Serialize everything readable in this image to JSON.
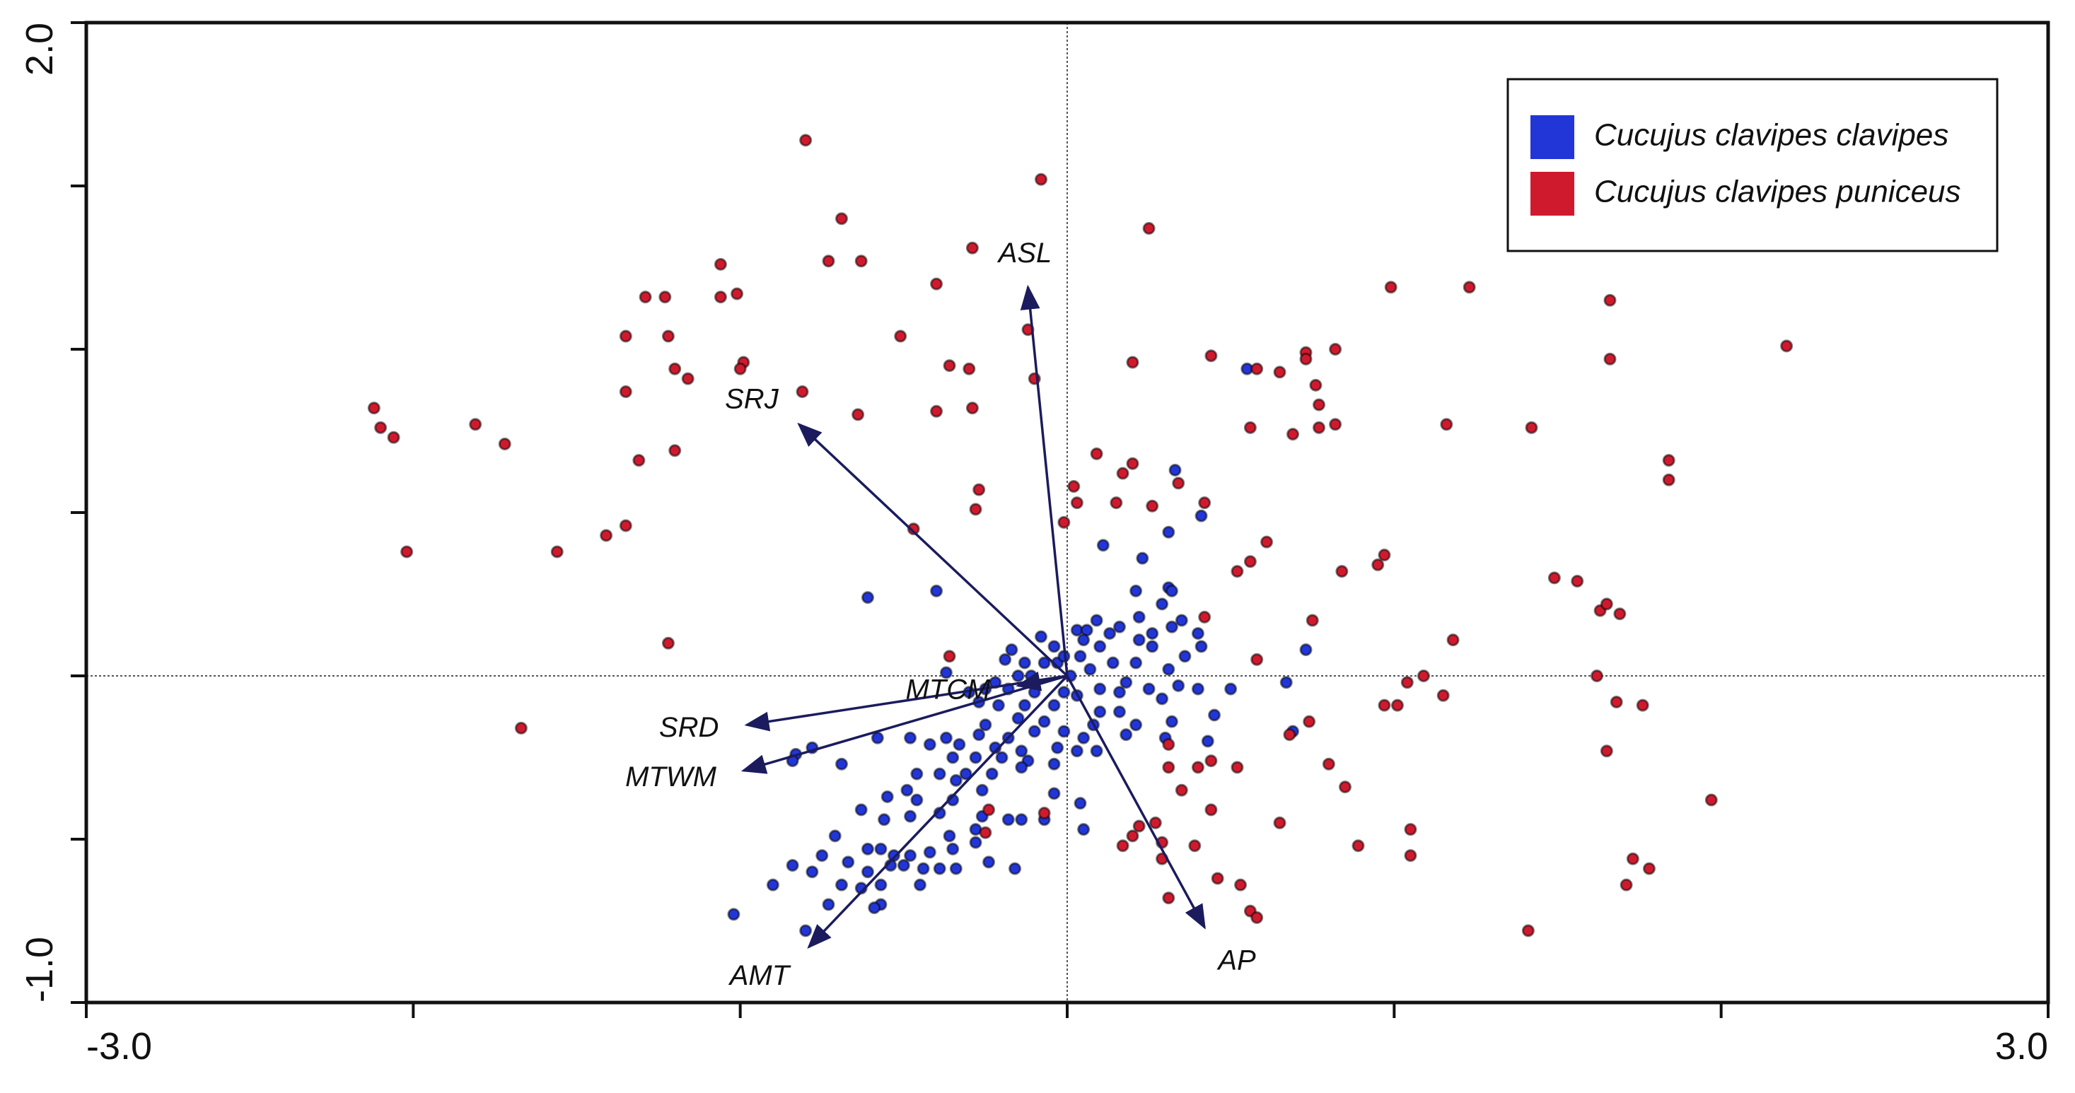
{
  "chart_data": {
    "type": "scatter",
    "xlim": [
      -3,
      3
    ],
    "ylim": [
      -1,
      2
    ],
    "xticks": [
      {
        "value": -3,
        "label": "-3.0"
      },
      {
        "value": -2
      },
      {
        "value": -1
      },
      {
        "value": 0
      },
      {
        "value": 1
      },
      {
        "value": 2
      },
      {
        "value": 3,
        "label": "3.0"
      }
    ],
    "yticks": [
      {
        "value": -1,
        "label": "-1.0"
      },
      {
        "value": -0.5
      },
      {
        "value": 0
      },
      {
        "value": 0.5
      },
      {
        "value": 1
      },
      {
        "value": 1.5
      },
      {
        "value": 2,
        "label": "2.0"
      }
    ],
    "zero_lines": true,
    "legend": "top-right",
    "series": [
      {
        "name": "Cucujus clavipes clavipes",
        "color": "#2236d8",
        "x": [
          0.55,
          0.33,
          0.41,
          0.31,
          0.11,
          0.23,
          0.31,
          0.21,
          0.32,
          0.29,
          0.22,
          0.35,
          0.09,
          0.16,
          0.32,
          -0.61,
          -0.4,
          0.13,
          0.26,
          0.4,
          0.73,
          -0.08,
          0.03,
          0.06,
          -0.04,
          -0.03,
          0.05,
          0.1,
          0.22,
          0.26,
          0.36,
          0.41,
          -0.17,
          -0.19,
          -0.13,
          -0.07,
          -0.01,
          0.04,
          -0.11,
          -0.15,
          0.01,
          0.07,
          0.14,
          0.21,
          0.31,
          0.18,
          0.34,
          0.5,
          0.67,
          -0.37,
          -0.22,
          -0.25,
          -0.3,
          -0.18,
          -0.1,
          -0.01,
          0.03,
          0.1,
          0.16,
          0.25,
          0.4,
          0.29,
          -0.27,
          -0.21,
          -0.13,
          -0.04,
          0.1,
          0.16,
          0.32,
          0.45,
          -0.25,
          -0.15,
          -0.07,
          0.08,
          0.21,
          0.69,
          -0.37,
          -0.27,
          -0.18,
          -0.1,
          -0.01,
          0.05,
          0.18,
          0.3,
          -0.42,
          -0.33,
          -0.22,
          -0.14,
          -0.03,
          0.03,
          0.09,
          0.43,
          -0.83,
          -0.84,
          -0.78,
          -0.69,
          -0.58,
          -0.48,
          -0.35,
          -0.28,
          -0.2,
          -0.12,
          -0.04,
          -0.46,
          -0.39,
          -0.31,
          -0.23,
          -0.14,
          -0.34,
          -0.26,
          -0.49,
          -0.55,
          -0.46,
          -0.35,
          -0.04,
          0.04,
          -0.26,
          -0.63,
          -0.56,
          -0.48,
          -0.39,
          -0.18,
          -0.14,
          -0.07,
          0.05,
          -0.28,
          -0.71,
          -0.36,
          -0.28,
          -0.61,
          -0.57,
          -0.53,
          -0.48,
          -0.42,
          -0.35,
          -0.75,
          -0.67,
          -0.84,
          -0.78,
          -0.61,
          -0.54,
          -0.5,
          -0.44,
          -0.39,
          -0.34,
          -0.16,
          -0.24,
          -0.69,
          -0.57,
          -0.45,
          -0.9,
          -0.63,
          -0.73,
          -0.57,
          -0.59,
          -1.02,
          -0.8
        ],
        "y": [
          0.94,
          0.63,
          0.49,
          0.44,
          0.4,
          0.36,
          0.27,
          0.26,
          0.26,
          0.22,
          0.18,
          0.17,
          0.17,
          0.15,
          0.15,
          0.24,
          0.26,
          0.13,
          0.13,
          0.13,
          0.08,
          0.12,
          0.14,
          0.14,
          0.09,
          0.04,
          0.11,
          0.09,
          0.11,
          0.09,
          0.06,
          0.09,
          0.08,
          0.05,
          0.04,
          0.04,
          0.06,
          0.06,
          0,
          0,
          0,
          0.02,
          0.04,
          0.04,
          0.02,
          -0.02,
          -0.03,
          -0.04,
          -0.02,
          0.01,
          -0.02,
          -0.04,
          -0.05,
          -0.04,
          -0.05,
          -0.05,
          -0.06,
          -0.04,
          -0.05,
          -0.04,
          -0.04,
          -0.07,
          -0.08,
          -0.09,
          -0.09,
          -0.09,
          -0.11,
          -0.11,
          -0.14,
          -0.12,
          -0.15,
          -0.13,
          -0.14,
          -0.15,
          -0.15,
          -0.17,
          -0.19,
          -0.18,
          -0.19,
          -0.17,
          -0.17,
          -0.19,
          -0.18,
          -0.19,
          -0.21,
          -0.21,
          -0.22,
          -0.23,
          -0.22,
          -0.23,
          -0.23,
          -0.2,
          -0.24,
          -0.26,
          -0.22,
          -0.27,
          -0.19,
          -0.19,
          -0.25,
          -0.25,
          -0.25,
          -0.26,
          -0.27,
          -0.3,
          -0.3,
          -0.3,
          -0.3,
          -0.28,
          -0.32,
          -0.35,
          -0.35,
          -0.37,
          -0.38,
          -0.38,
          -0.36,
          -0.39,
          -0.43,
          -0.41,
          -0.44,
          -0.43,
          -0.42,
          -0.44,
          -0.44,
          -0.44,
          -0.47,
          -0.47,
          -0.49,
          -0.49,
          -0.51,
          -0.53,
          -0.53,
          -0.55,
          -0.55,
          -0.54,
          -0.53,
          -0.55,
          -0.57,
          -0.58,
          -0.6,
          -0.6,
          -0.58,
          -0.58,
          -0.59,
          -0.59,
          -0.59,
          -0.59,
          -0.57,
          -0.64,
          -0.64,
          -0.64,
          -0.64,
          -0.65,
          -0.7,
          -0.7,
          -0.71,
          -0.73,
          -0.78
        ]
      },
      {
        "name": "Cucujus clavipes puniceus",
        "color": "#cf1a2e",
        "x": [
          -0.8,
          -0.08,
          -0.69,
          0.25,
          -0.29,
          -1.06,
          -0.73,
          -0.63,
          -1.29,
          -1.23,
          -1.06,
          -1.01,
          -0.4,
          0.99,
          1.23,
          1.66,
          -1.35,
          -1.22,
          -0.51,
          -0.12,
          2.2,
          -0.99,
          -1.0,
          -0.36,
          -0.3,
          0.2,
          0.44,
          0.73,
          0.82,
          0.58,
          0.65,
          0.73,
          1.66,
          -1.2,
          -1.16,
          -1.35,
          -0.81,
          -0.1,
          0.76,
          -2.12,
          -2.1,
          -2.06,
          -1.81,
          -1.72,
          -0.64,
          -0.4,
          -0.29,
          0.77,
          0.82,
          0.56,
          0.69,
          0.77,
          1.16,
          1.42,
          -1.2,
          -1.31,
          0.09,
          0.2,
          0.17,
          0.34,
          -0.27,
          -0.28,
          0.02,
          0.03,
          0.15,
          0.26,
          0.42,
          1.84,
          1.84,
          -1.35,
          -1.41,
          -2.02,
          -1.56,
          -0.47,
          -0.01,
          0.61,
          0.56,
          0.52,
          0.97,
          0.95,
          0.84,
          1.49,
          1.56,
          1.63,
          1.65,
          1.69,
          0.42,
          0.75,
          1.18,
          -1.22,
          -0.36,
          0.58,
          1.62,
          1.09,
          1.04,
          1.15,
          0.97,
          1.01,
          1.68,
          1.76,
          -1.67,
          0.31,
          0.68,
          0.74,
          1.65,
          0.31,
          0.44,
          0.52,
          0.4,
          0.8,
          0.85,
          0.35,
          0.44,
          0.65,
          1.97,
          -0.24,
          -0.07,
          -0.25,
          0.22,
          0.27,
          0.2,
          0.29,
          0.29,
          0.17,
          0.39,
          1.05,
          0.89,
          1.05,
          1.73,
          1.78,
          1.71,
          0.46,
          0.53,
          0.31,
          0.56,
          0.58,
          1.41
        ],
        "y": [
          1.64,
          1.52,
          1.4,
          1.37,
          1.31,
          1.26,
          1.27,
          1.27,
          1.16,
          1.16,
          1.16,
          1.17,
          1.2,
          1.19,
          1.19,
          1.15,
          1.04,
          1.04,
          1.04,
          1.06,
          1.01,
          0.96,
          0.94,
          0.95,
          0.94,
          0.96,
          0.98,
          0.99,
          1.0,
          0.94,
          0.93,
          0.97,
          0.97,
          0.94,
          0.91,
          0.87,
          0.87,
          0.91,
          0.89,
          0.82,
          0.76,
          0.73,
          0.77,
          0.71,
          0.8,
          0.81,
          0.82,
          0.83,
          0.77,
          0.76,
          0.74,
          0.76,
          0.77,
          0.76,
          0.69,
          0.66,
          0.68,
          0.65,
          0.62,
          0.59,
          0.57,
          0.51,
          0.58,
          0.53,
          0.53,
          0.52,
          0.53,
          0.66,
          0.6,
          0.46,
          0.43,
          0.38,
          0.38,
          0.45,
          0.47,
          0.41,
          0.35,
          0.32,
          0.37,
          0.34,
          0.32,
          0.3,
          0.29,
          0.2,
          0.22,
          0.19,
          0.18,
          0.17,
          0.11,
          0.1,
          0.06,
          0.05,
          0,
          0,
          -0.02,
          -0.06,
          -0.09,
          -0.09,
          -0.08,
          -0.09,
          -0.16,
          -0.21,
          -0.18,
          -0.14,
          -0.23,
          -0.28,
          -0.26,
          -0.28,
          -0.28,
          -0.27,
          -0.34,
          -0.35,
          -0.41,
          -0.45,
          -0.38,
          -0.41,
          -0.42,
          -0.48,
          -0.46,
          -0.45,
          -0.49,
          -0.51,
          -0.56,
          -0.52,
          -0.52,
          -0.47,
          -0.52,
          -0.55,
          -0.56,
          -0.59,
          -0.64,
          -0.62,
          -0.64,
          -0.68,
          -0.72,
          -0.74,
          -0.78
        ]
      }
    ],
    "vectors": [
      {
        "label": "ASL",
        "x": -0.12,
        "y": 1.19
      },
      {
        "label": "SRJ",
        "x": -0.82,
        "y": 0.77
      },
      {
        "label": "SRD",
        "x": -0.98,
        "y": -0.15
      },
      {
        "label": "MTWM",
        "x": -0.99,
        "y": -0.29
      },
      {
        "label": "MTCM",
        "x": -0.15,
        "y": -0.03
      },
      {
        "label": "AMT",
        "x": -0.79,
        "y": -0.83
      },
      {
        "label": "AP",
        "x": 0.42,
        "y": -0.77
      }
    ]
  }
}
